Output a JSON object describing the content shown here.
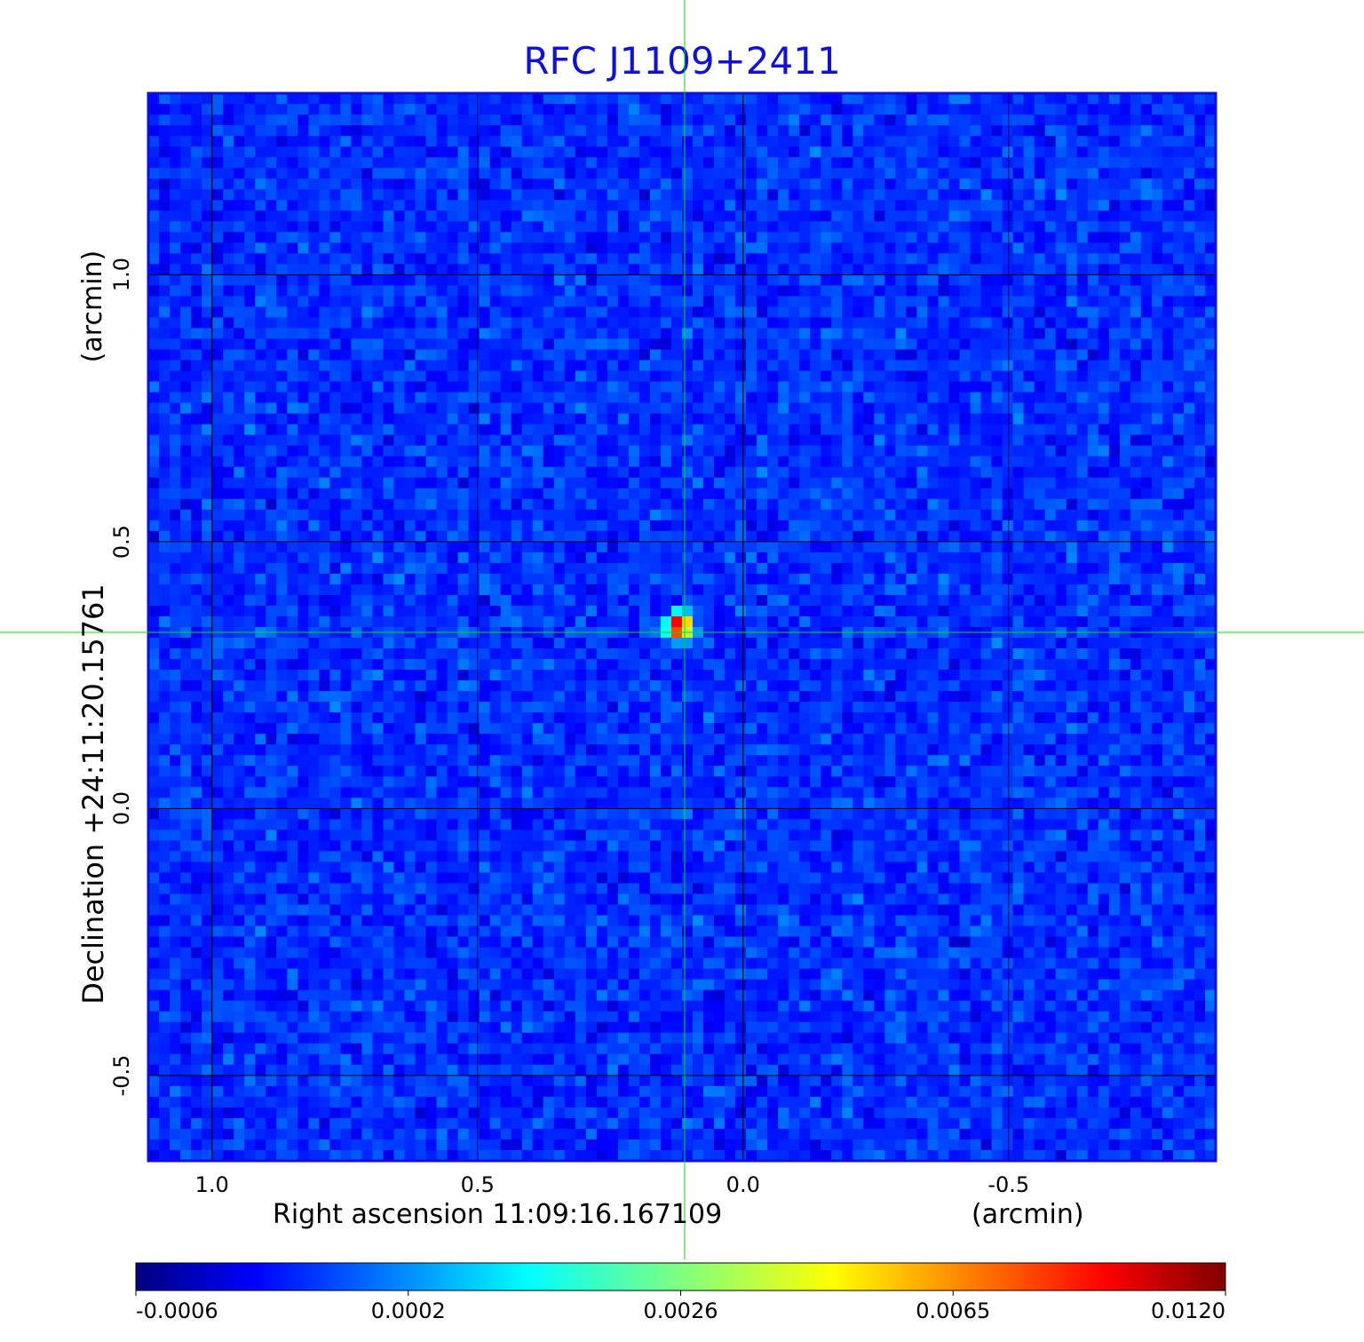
{
  "chart_data": {
    "type": "heatmap",
    "title": "RFC J1109+2411",
    "xlabel": "Right ascension  11:09:16.167109",
    "xunit": "(arcmin)",
    "ylabel": "Declination  +24:11:20.15761",
    "yunit": "(arcmin)",
    "x_ticks": [
      "1.0",
      "0.5",
      "0.0",
      "-0.5"
    ],
    "y_ticks": [
      "1.0",
      "0.5",
      "0.0",
      "-0.5"
    ],
    "xlim": [
      1.12,
      -0.89
    ],
    "ylim": [
      -0.66,
      1.34
    ],
    "x_reversed": true,
    "grid": true,
    "crosshair": {
      "x": 0.11,
      "y": 0.33,
      "color": "#00e000"
    },
    "peak": {
      "x": 0.12,
      "y": 0.34,
      "value": 0.012
    },
    "colorbar": {
      "colormap": "jet",
      "ticks": [
        "-0.0006",
        "0.0002",
        "0.0026",
        "0.0065",
        "0.0120"
      ]
    }
  },
  "colors": {
    "title": "#1010d8",
    "frame": "#1010d8",
    "grid": "#000000",
    "crosshair": "#00e000"
  }
}
